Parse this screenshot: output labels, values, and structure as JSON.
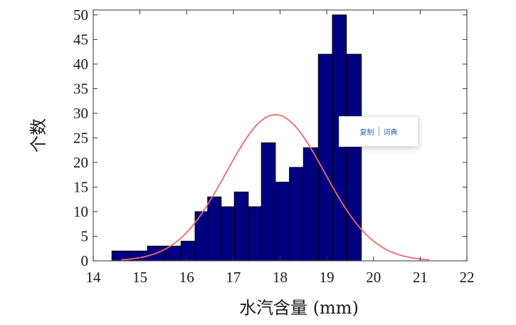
{
  "chart_data": {
    "type": "bar",
    "subtype": "histogram-with-normal-fit",
    "xlabel": "水汽含量 (mm)",
    "ylabel": "个数",
    "xlim": [
      14,
      22
    ],
    "ylim": [
      0,
      51
    ],
    "xticks": [
      "14",
      "15",
      "16",
      "17",
      "18",
      "19",
      "20",
      "21",
      "22"
    ],
    "yticks": [
      "0",
      "5",
      "10",
      "15",
      "20",
      "25",
      "30",
      "35",
      "40",
      "45",
      "50"
    ],
    "grid": false,
    "bar_color": "#000080",
    "curve_color": "#ef6b6b",
    "bins": [
      {
        "x0": 14.4,
        "x1": 14.78,
        "count": 2
      },
      {
        "x0": 14.78,
        "x1": 15.16,
        "count": 2
      },
      {
        "x0": 15.16,
        "x1": 15.53,
        "count": 3
      },
      {
        "x0": 15.53,
        "x1": 15.88,
        "count": 3
      },
      {
        "x0": 15.88,
        "x1": 16.18,
        "count": 4
      },
      {
        "x0": 16.18,
        "x1": 16.45,
        "count": 10
      },
      {
        "x0": 16.45,
        "x1": 16.74,
        "count": 13
      },
      {
        "x0": 16.74,
        "x1": 17.02,
        "count": 11
      },
      {
        "x0": 17.02,
        "x1": 17.32,
        "count": 14
      },
      {
        "x0": 17.32,
        "x1": 17.6,
        "count": 11
      },
      {
        "x0": 17.6,
        "x1": 17.9,
        "count": 24
      },
      {
        "x0": 17.9,
        "x1": 18.2,
        "count": 16
      },
      {
        "x0": 18.2,
        "x1": 18.5,
        "count": 19
      },
      {
        "x0": 18.5,
        "x1": 18.82,
        "count": 23
      },
      {
        "x0": 18.82,
        "x1": 19.12,
        "count": 42
      },
      {
        "x0": 19.12,
        "x1": 19.42,
        "count": 50
      },
      {
        "x0": 19.42,
        "x1": 19.74,
        "count": 42
      }
    ],
    "fit_curve": {
      "type": "normal",
      "mean": 17.9,
      "peak": 29.7,
      "sigma": 1.05,
      "x_range": [
        14.6,
        21.2
      ]
    }
  },
  "popup": {
    "copy_label": "复制",
    "dictionary_label": "词典"
  }
}
